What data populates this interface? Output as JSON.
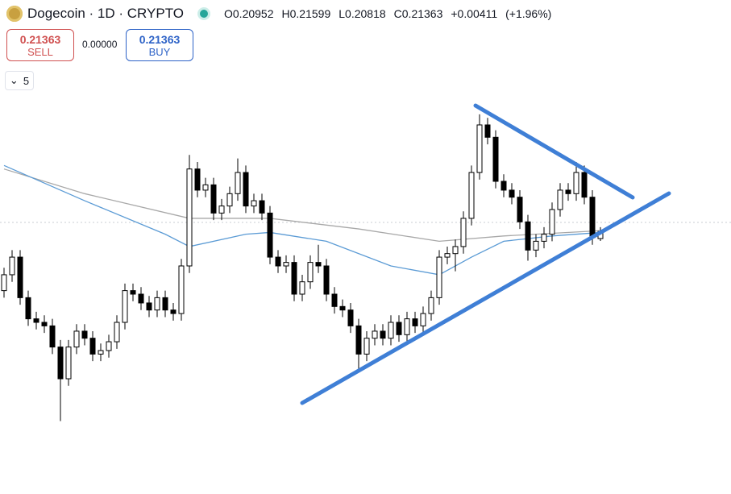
{
  "header": {
    "title": "Dogecoin · 1D · CRYPTO",
    "ohlc": [
      {
        "label": "O",
        "value": 0.20952
      },
      {
        "label": "H",
        "value": 0.21599
      },
      {
        "label": "L",
        "value": 0.20818
      },
      {
        "label": "C",
        "value": 0.21363
      }
    ],
    "change": "+0.00411",
    "change_pct": "(+1.96%)",
    "sell": {
      "price": 0.21363,
      "label": "SELL"
    },
    "spread": "0.00000",
    "buy": {
      "price": 0.21363,
      "label": "BUY"
    },
    "indicator_count": 5
  },
  "chart_data": {
    "type": "candlestick",
    "ylim": [
      0.098,
      0.29
    ],
    "up_color": "#ffffff",
    "down_color": "#000000",
    "open": [
      0.18,
      0.189,
      0.199,
      0.176,
      0.164,
      0.162,
      0.16,
      0.148,
      0.13,
      0.148,
      0.157,
      0.153,
      0.144,
      0.146,
      0.151,
      0.162,
      0.18,
      0.178,
      0.173,
      0.169,
      0.176,
      0.169,
      0.167,
      0.194,
      0.249,
      0.237,
      0.24,
      0.224,
      0.228,
      0.235,
      0.247,
      0.228,
      0.231,
      0.224,
      0.199,
      0.194,
      0.196,
      0.178,
      0.185,
      0.196,
      0.194,
      0.178,
      0.171,
      0.169,
      0.16,
      0.144,
      0.153,
      0.157,
      0.153,
      0.162,
      0.155,
      0.164,
      0.16,
      0.167,
      0.176,
      0.199,
      0.201,
      0.205,
      0.221,
      0.247,
      0.274,
      0.267,
      0.242,
      0.237,
      0.233,
      0.219,
      0.203,
      0.208,
      0.212,
      0.226,
      0.237,
      0.235,
      0.247,
      0.233,
      0.20952
    ],
    "high": [
      0.193,
      0.203,
      0.203,
      0.18,
      0.168,
      0.166,
      0.164,
      0.152,
      0.152,
      0.161,
      0.161,
      0.157,
      0.15,
      0.155,
      0.166,
      0.184,
      0.184,
      0.182,
      0.177,
      0.18,
      0.18,
      0.173,
      0.198,
      0.257,
      0.253,
      0.244,
      0.244,
      0.232,
      0.239,
      0.255,
      0.251,
      0.235,
      0.235,
      0.228,
      0.203,
      0.2,
      0.2,
      0.189,
      0.2,
      0.206,
      0.198,
      0.182,
      0.175,
      0.173,
      0.164,
      0.157,
      0.161,
      0.161,
      0.166,
      0.166,
      0.168,
      0.168,
      0.171,
      0.18,
      0.203,
      0.205,
      0.209,
      0.225,
      0.251,
      0.28,
      0.278,
      0.271,
      0.246,
      0.241,
      0.237,
      0.223,
      0.212,
      0.216,
      0.23,
      0.241,
      0.241,
      0.253,
      0.251,
      0.237,
      0.21599
    ],
    "low": [
      0.176,
      0.185,
      0.172,
      0.16,
      0.158,
      0.156,
      0.144,
      0.106,
      0.126,
      0.144,
      0.149,
      0.14,
      0.14,
      0.142,
      0.147,
      0.158,
      0.174,
      0.169,
      0.165,
      0.165,
      0.165,
      0.163,
      0.163,
      0.19,
      0.233,
      0.233,
      0.22,
      0.22,
      0.224,
      0.231,
      0.224,
      0.224,
      0.22,
      0.195,
      0.19,
      0.19,
      0.174,
      0.174,
      0.181,
      0.19,
      0.174,
      0.167,
      0.165,
      0.156,
      0.134,
      0.14,
      0.149,
      0.149,
      0.149,
      0.151,
      0.151,
      0.156,
      0.156,
      0.163,
      0.172,
      0.195,
      0.191,
      0.201,
      0.217,
      0.243,
      0.263,
      0.238,
      0.233,
      0.229,
      0.215,
      0.197,
      0.199,
      0.204,
      0.208,
      0.222,
      0.231,
      0.231,
      0.229,
      0.206,
      0.20818
    ],
    "close": [
      0.189,
      0.199,
      0.176,
      0.164,
      0.162,
      0.16,
      0.148,
      0.13,
      0.148,
      0.157,
      0.153,
      0.144,
      0.146,
      0.151,
      0.162,
      0.18,
      0.178,
      0.173,
      0.169,
      0.176,
      0.169,
      0.167,
      0.194,
      0.249,
      0.237,
      0.24,
      0.224,
      0.228,
      0.235,
      0.247,
      0.228,
      0.231,
      0.224,
      0.199,
      0.194,
      0.196,
      0.178,
      0.185,
      0.196,
      0.194,
      0.178,
      0.171,
      0.169,
      0.16,
      0.144,
      0.153,
      0.157,
      0.153,
      0.162,
      0.155,
      0.164,
      0.16,
      0.167,
      0.176,
      0.199,
      0.201,
      0.205,
      0.221,
      0.247,
      0.274,
      0.267,
      0.242,
      0.237,
      0.233,
      0.219,
      0.203,
      0.208,
      0.212,
      0.226,
      0.237,
      0.235,
      0.247,
      0.233,
      0.21,
      0.21363
    ],
    "overlays": [
      {
        "color": "#a8a8a8",
        "x": [
          0,
          10,
          23,
          33,
          44,
          54,
          62,
          74
        ],
        "values": [
          0.249,
          0.235,
          0.221,
          0.221,
          0.215,
          0.208,
          0.211,
          0.214
        ]
      },
      {
        "color": "#5b9bd5",
        "x": [
          0,
          10,
          20,
          23,
          30,
          33,
          40,
          48,
          54,
          58,
          62,
          68,
          74
        ],
        "values": [
          0.251,
          0.231,
          0.212,
          0.205,
          0.212,
          0.213,
          0.208,
          0.194,
          0.189,
          0.199,
          0.208,
          0.211,
          0.213
        ]
      }
    ]
  }
}
